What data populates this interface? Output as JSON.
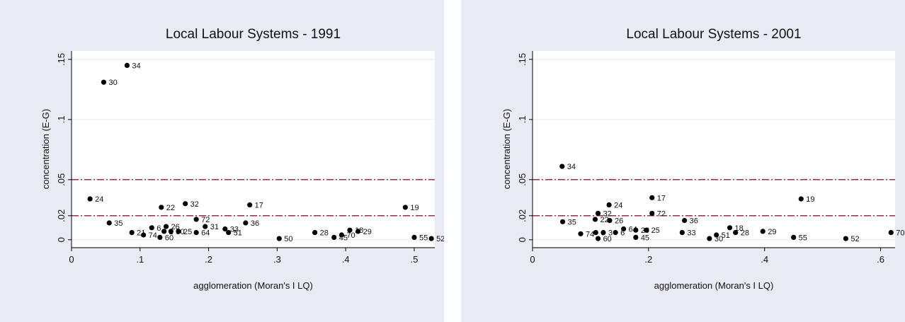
{
  "chart_data": [
    {
      "type": "scatter",
      "title": "Local Labour Systems - 1991",
      "xlabel": "agglomeration (Moran's I LQ)",
      "ylabel": "concentration (E-G)",
      "xlim": [
        0,
        0.53
      ],
      "ylim": [
        -0.006,
        0.157
      ],
      "xticks": [
        "0",
        ".1",
        ".2",
        ".3",
        ".4",
        ".5"
      ],
      "xtick_values": [
        0,
        0.1,
        0.2,
        0.3,
        0.4,
        0.5
      ],
      "yticks": [
        "0",
        ".02",
        ".05",
        ".1",
        ".15"
      ],
      "ytick_values": [
        0,
        0.02,
        0.05,
        0.1,
        0.15
      ],
      "hlines": [
        0.02,
        0.05
      ],
      "grid": true,
      "points": [
        {
          "label": "34",
          "x": 0.081,
          "y": 0.145
        },
        {
          "label": "30",
          "x": 0.047,
          "y": 0.131
        },
        {
          "label": "24",
          "x": 0.027,
          "y": 0.034
        },
        {
          "label": "32",
          "x": 0.166,
          "y": 0.03
        },
        {
          "label": "17",
          "x": 0.26,
          "y": 0.029
        },
        {
          "label": "22",
          "x": 0.131,
          "y": 0.027
        },
        {
          "label": "19",
          "x": 0.487,
          "y": 0.027
        },
        {
          "label": "72",
          "x": 0.182,
          "y": 0.017
        },
        {
          "label": "35",
          "x": 0.055,
          "y": 0.014
        },
        {
          "label": "36",
          "x": 0.254,
          "y": 0.014
        },
        {
          "label": "26",
          "x": 0.138,
          "y": 0.011
        },
        {
          "label": "31",
          "x": 0.195,
          "y": 0.011
        },
        {
          "label": "6",
          "x": 0.117,
          "y": 0.01
        },
        {
          "label": "33",
          "x": 0.224,
          "y": 0.009
        },
        {
          "label": "18",
          "x": 0.406,
          "y": 0.008
        },
        {
          "label": "29",
          "x": 0.418,
          "y": 0.007
        },
        {
          "label": "50",
          "x": 0.145,
          "y": 0.007
        },
        {
          "label": "2",
          "x": 0.135,
          "y": 0.007
        },
        {
          "label": "25",
          "x": 0.156,
          "y": 0.007
        },
        {
          "label": "21",
          "x": 0.088,
          "y": 0.006
        },
        {
          "label": "64",
          "x": 0.182,
          "y": 0.006
        },
        {
          "label": "28",
          "x": 0.355,
          "y": 0.006
        },
        {
          "label": "51",
          "x": 0.229,
          "y": 0.006
        },
        {
          "label": "74",
          "x": 0.105,
          "y": 0.004
        },
        {
          "label": "70",
          "x": 0.394,
          "y": 0.004
        },
        {
          "label": "45",
          "x": 0.383,
          "y": 0.002
        },
        {
          "label": "60",
          "x": 0.129,
          "y": 0.002
        },
        {
          "label": "55",
          "x": 0.5,
          "y": 0.002
        },
        {
          "label": "50",
          "x": 0.303,
          "y": 0.001
        },
        {
          "label": "52",
          "x": 0.525,
          "y": 0.001
        }
      ]
    },
    {
      "type": "scatter",
      "title": "Local Labour Systems - 2001",
      "xlabel": "agglomeration (Moran's I LQ)",
      "ylabel": "concentration (E-G)",
      "xlim": [
        0,
        0.625
      ],
      "ylim": [
        -0.006,
        0.157
      ],
      "xticks": [
        "0",
        ".2",
        ".4",
        ".6"
      ],
      "xtick_values": [
        0,
        0.2,
        0.4,
        0.6
      ],
      "yticks": [
        "0",
        ".02",
        ".05",
        ".1",
        ".15"
      ],
      "ytick_values": [
        0,
        0.02,
        0.05,
        0.1,
        0.15
      ],
      "hlines": [
        0.02,
        0.05
      ],
      "grid": true,
      "points": [
        {
          "label": "34",
          "x": 0.051,
          "y": 0.061
        },
        {
          "label": "17",
          "x": 0.206,
          "y": 0.035
        },
        {
          "label": "19",
          "x": 0.463,
          "y": 0.034
        },
        {
          "label": "24",
          "x": 0.132,
          "y": 0.029
        },
        {
          "label": "72",
          "x": 0.206,
          "y": 0.022
        },
        {
          "label": "32",
          "x": 0.113,
          "y": 0.022
        },
        {
          "label": "22",
          "x": 0.108,
          "y": 0.017
        },
        {
          "label": "26",
          "x": 0.133,
          "y": 0.016
        },
        {
          "label": "36",
          "x": 0.262,
          "y": 0.016
        },
        {
          "label": "35",
          "x": 0.052,
          "y": 0.015
        },
        {
          "label": "18",
          "x": 0.34,
          "y": 0.01
        },
        {
          "label": "64",
          "x": 0.157,
          "y": 0.009
        },
        {
          "label": "20",
          "x": 0.178,
          "y": 0.008
        },
        {
          "label": "25",
          "x": 0.196,
          "y": 0.008
        },
        {
          "label": "29",
          "x": 0.397,
          "y": 0.007
        },
        {
          "label": "33",
          "x": 0.258,
          "y": 0.006
        },
        {
          "label": "28",
          "x": 0.35,
          "y": 0.006
        },
        {
          "label": "70",
          "x": 0.618,
          "y": 0.006
        },
        {
          "label": "74",
          "x": 0.083,
          "y": 0.005
        },
        {
          "label": "6",
          "x": 0.109,
          "y": 0.006
        },
        {
          "label": "3",
          "x": 0.122,
          "y": 0.006
        },
        {
          "label": "6",
          "x": 0.143,
          "y": 0.006
        },
        {
          "label": "51",
          "x": 0.317,
          "y": 0.004
        },
        {
          "label": "45",
          "x": 0.178,
          "y": 0.002
        },
        {
          "label": "55",
          "x": 0.45,
          "y": 0.002
        },
        {
          "label": "30",
          "x": 0.305,
          "y": 0.001
        },
        {
          "label": "60",
          "x": 0.113,
          "y": 0.001
        },
        {
          "label": "52",
          "x": 0.54,
          "y": 0.001
        }
      ]
    }
  ]
}
